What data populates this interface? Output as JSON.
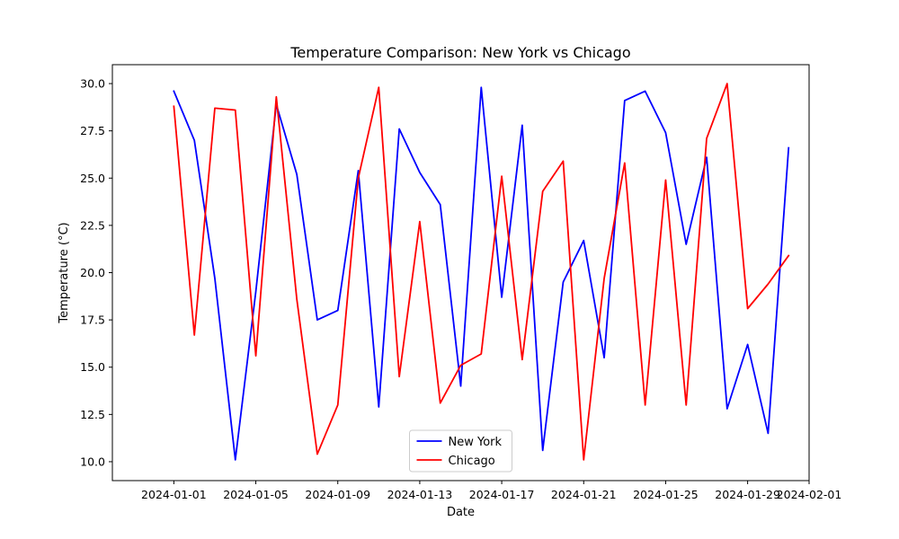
{
  "chart_data": {
    "type": "line",
    "title": "Temperature Comparison: New York vs Chicago",
    "xlabel": "Date",
    "ylabel": "Temperature (°C)",
    "ylim": [
      9.0,
      31.0
    ],
    "xlim": [
      "2023-12-29",
      "2024-02-01"
    ],
    "x": [
      "2024-01-01",
      "2024-01-02",
      "2024-01-03",
      "2024-01-04",
      "2024-01-05",
      "2024-01-06",
      "2024-01-07",
      "2024-01-08",
      "2024-01-09",
      "2024-01-10",
      "2024-01-11",
      "2024-01-12",
      "2024-01-13",
      "2024-01-14",
      "2024-01-15",
      "2024-01-16",
      "2024-01-17",
      "2024-01-18",
      "2024-01-19",
      "2024-01-20",
      "2024-01-21",
      "2024-01-22",
      "2024-01-23",
      "2024-01-24",
      "2024-01-25",
      "2024-01-26",
      "2024-01-27",
      "2024-01-28",
      "2024-01-29",
      "2024-01-30",
      "2024-01-31"
    ],
    "x_ticks": [
      "2024-01-01",
      "2024-01-05",
      "2024-01-09",
      "2024-01-13",
      "2024-01-17",
      "2024-01-21",
      "2024-01-25",
      "2024-01-29",
      "2024-02-01"
    ],
    "y_ticks": [
      10.0,
      12.5,
      15.0,
      17.5,
      20.0,
      22.5,
      25.0,
      27.5,
      30.0
    ],
    "y_tick_labels": [
      "10.0",
      "12.5",
      "15.0",
      "17.5",
      "20.0",
      "22.5",
      "25.0",
      "27.5",
      "30.0"
    ],
    "grid": false,
    "legend_position": "bottom-center",
    "series": [
      {
        "name": "New York",
        "color": "#0000ff",
        "values": [
          29.6,
          27.0,
          19.7,
          10.1,
          19.0,
          28.9,
          25.2,
          17.5,
          18.0,
          25.4,
          12.9,
          27.6,
          25.3,
          23.6,
          14.0,
          29.8,
          18.7,
          27.8,
          10.6,
          19.5,
          21.7,
          15.5,
          29.1,
          29.6,
          27.4,
          21.5,
          26.1,
          12.8,
          16.2,
          11.5,
          26.6
        ]
      },
      {
        "name": "Chicago",
        "color": "#ff0000",
        "values": [
          28.8,
          16.7,
          28.7,
          28.6,
          15.6,
          29.3,
          18.6,
          10.4,
          13.0,
          25.0,
          29.8,
          14.5,
          22.7,
          13.1,
          15.1,
          15.7,
          25.1,
          15.4,
          24.3,
          25.9,
          10.1,
          19.7,
          25.8,
          13.0,
          24.9,
          13.0,
          27.1,
          30.0,
          18.1,
          19.4,
          20.9
        ]
      }
    ]
  }
}
